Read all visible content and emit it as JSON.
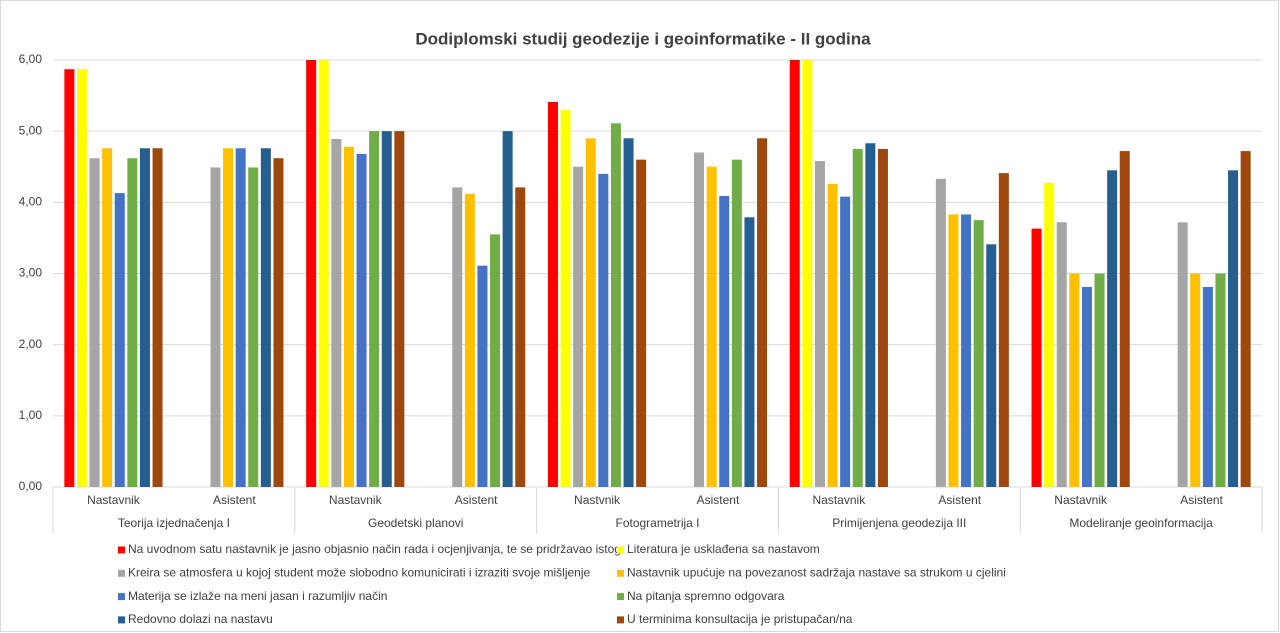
{
  "chart_data": {
    "type": "bar",
    "title": "Dodiplomski studij geodezije i geoinformatike  - II godina",
    "categories": [
      "Nastavnik",
      "Asistent",
      "Nastavnik",
      "Asistent",
      "Nastvnik",
      "Asistent",
      "Nastavnik",
      "Asistent",
      "Nastavnik",
      "Asistent"
    ],
    "category_groups": [
      "Teorija izjednačenja I",
      "Geodetski planovi",
      "Fotogrametrija I",
      "Primijenjena geodezija III",
      "Modeliranje geoinformacija"
    ],
    "ylim": [
      0,
      6
    ],
    "yticks": [
      {
        "value": 0,
        "label": "0,00"
      },
      {
        "value": 1,
        "label": "1,00"
      },
      {
        "value": 2,
        "label": "2,00"
      },
      {
        "value": 3,
        "label": "3,00"
      },
      {
        "value": 4,
        "label": "4,00"
      },
      {
        "value": 5,
        "label": "5,00"
      },
      {
        "value": 6,
        "label": "6,00"
      }
    ],
    "grid": true,
    "legend": "bottom",
    "series": [
      {
        "name": "Na uvodnom satu nastavnik je jasno objasnio način rada i ocjenjivanja, te se pridržavao istog",
        "color": "#ff0000",
        "values": [
          5.87,
          null,
          6,
          null,
          5.41,
          null,
          6,
          null,
          3.63,
          null
        ]
      },
      {
        "name": "Literatura je usklađena sa nastavom",
        "color": "#ffff00",
        "values": [
          5.87,
          null,
          6,
          null,
          5.3,
          null,
          6,
          null,
          4.27,
          null
        ]
      },
      {
        "name": "Kreira se atmosfera u kojoj student može slobodno komunicirati i izraziti svoje mišljenje",
        "color": "#a5a5a5",
        "values": [
          4.62,
          4.49,
          4.89,
          4.21,
          4.5,
          4.7,
          4.58,
          4.33,
          3.72,
          3.72
        ]
      },
      {
        "name": "Nastavnik upućuje na povezanost sadržaja nastave sa strukom u cjelini",
        "color": "#ffc000",
        "values": [
          4.76,
          4.76,
          4.78,
          4.12,
          4.9,
          4.5,
          4.26,
          3.83,
          3.0,
          3.0
        ]
      },
      {
        "name": "Materija se izlaže na meni jasan i razumljiv način",
        "color": "#4472c4",
        "values": [
          4.13,
          4.76,
          4.68,
          3.11,
          4.4,
          4.09,
          4.08,
          3.83,
          2.81,
          2.81
        ]
      },
      {
        "name": "Na pitanja spremno odgovara",
        "color": "#70ad47",
        "values": [
          4.62,
          4.49,
          5.0,
          3.55,
          5.11,
          4.6,
          4.75,
          3.75,
          3.0,
          3.0
        ]
      },
      {
        "name": "Redovno dolazi na nastavu",
        "color": "#255e91",
        "values": [
          4.76,
          4.76,
          5.0,
          5.0,
          4.9,
          3.79,
          4.83,
          3.41,
          4.45,
          4.45
        ]
      },
      {
        "name": "U terminima konsultacija je pristupačan/na",
        "color": "#9e480e",
        "values": [
          4.76,
          4.62,
          5.0,
          4.21,
          4.6,
          4.9,
          4.75,
          4.41,
          4.72,
          4.72
        ]
      }
    ]
  }
}
